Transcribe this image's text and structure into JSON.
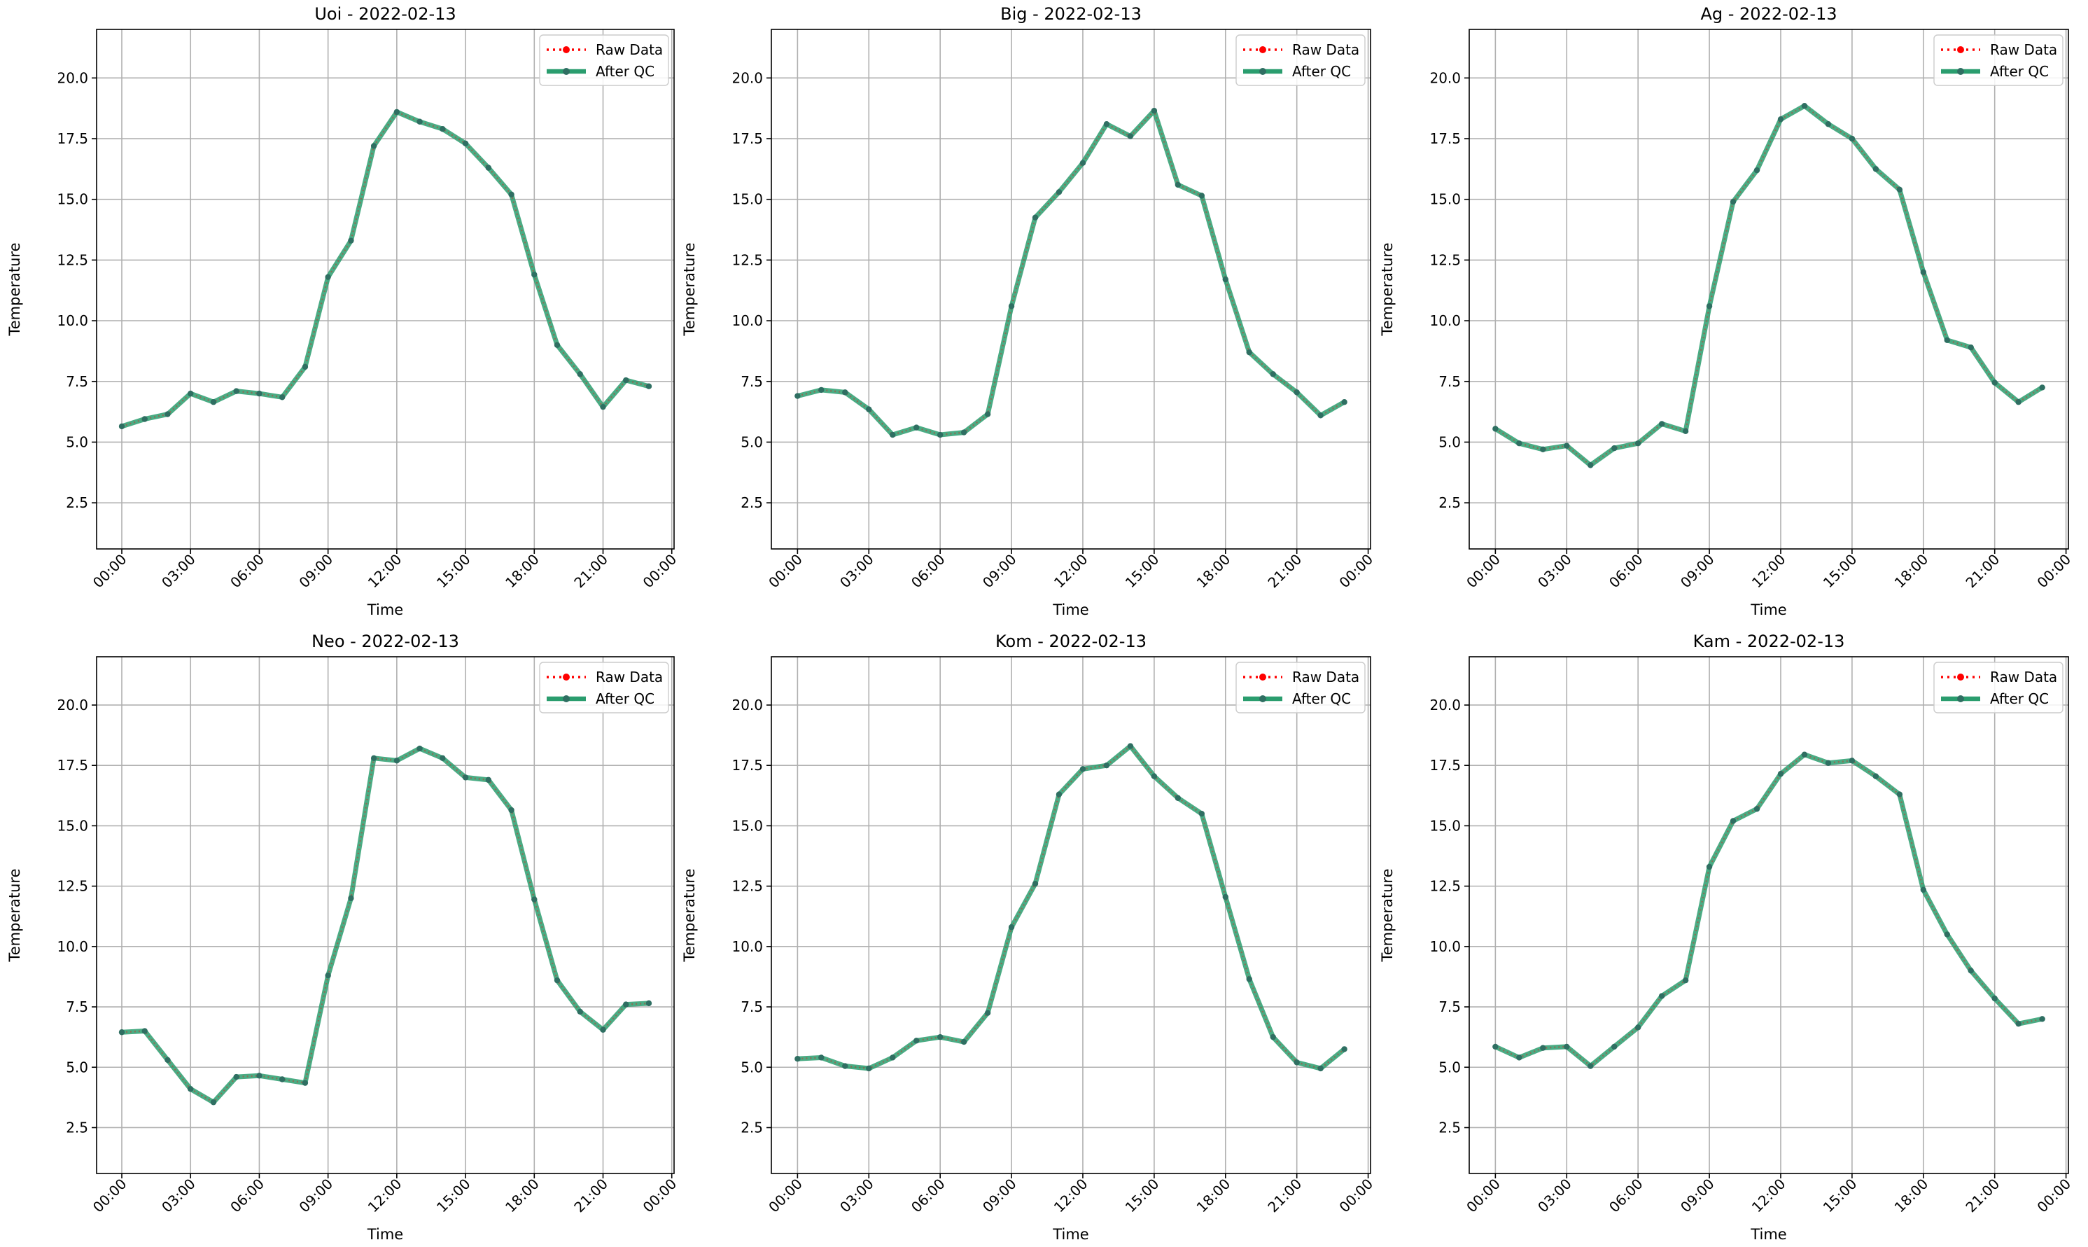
{
  "figure": {
    "legend_entries": [
      "Raw Data",
      "After QC"
    ],
    "colors": {
      "raw": "#ff0000",
      "qc": "#2a9d6e",
      "qc_marker": "#2f6f62",
      "grid": "#b0b0b0",
      "axes": "#000000"
    }
  },
  "chart_data": [
    {
      "type": "line",
      "title": "Uoi - 2022-02-13",
      "xlabel": "Time",
      "ylabel": "Temperature",
      "xlim": [
        -1.1,
        24.1
      ],
      "ylim": [
        0.6,
        22.0
      ],
      "yticks": [
        2.5,
        5.0,
        7.5,
        10.0,
        12.5,
        15.0,
        17.5,
        20.0
      ],
      "ytick_labels": [
        "2.5",
        "5.0",
        "7.5",
        "10.0",
        "12.5",
        "15.0",
        "17.5",
        "20.0"
      ],
      "xticks": [
        0,
        3,
        6,
        9,
        12,
        15,
        18,
        21,
        24
      ],
      "xtick_labels": [
        "00:00",
        "03:00",
        "06:00",
        "09:00",
        "12:00",
        "15:00",
        "18:00",
        "21:00",
        "00:00"
      ],
      "grid": true,
      "legend": "top-right",
      "x": [
        0,
        1,
        2,
        3,
        4,
        5,
        6,
        7,
        8,
        9,
        10,
        11,
        12,
        13,
        14,
        15,
        16,
        17,
        18,
        19,
        20,
        21,
        22,
        23
      ],
      "series": [
        {
          "name": "Raw Data",
          "values": [
            5.65,
            5.95,
            6.15,
            7.0,
            6.65,
            7.1,
            7.0,
            6.85,
            8.1,
            11.8,
            13.3,
            17.2,
            18.6,
            18.2,
            17.9,
            17.3,
            16.3,
            15.2,
            11.9,
            9.0,
            7.8,
            6.45,
            7.55,
            7.3
          ]
        },
        {
          "name": "After QC",
          "values": [
            5.65,
            5.95,
            6.15,
            7.0,
            6.65,
            7.1,
            7.0,
            6.85,
            8.1,
            11.8,
            13.3,
            17.2,
            18.6,
            18.2,
            17.9,
            17.3,
            16.3,
            15.2,
            11.9,
            9.0,
            7.8,
            6.45,
            7.55,
            7.3
          ]
        }
      ]
    },
    {
      "type": "line",
      "title": "Big - 2022-02-13",
      "xlabel": "Time",
      "ylabel": "Temperature",
      "xlim": [
        -1.1,
        24.1
      ],
      "ylim": [
        0.6,
        22.0
      ],
      "yticks": [
        2.5,
        5.0,
        7.5,
        10.0,
        12.5,
        15.0,
        17.5,
        20.0
      ],
      "ytick_labels": [
        "2.5",
        "5.0",
        "7.5",
        "10.0",
        "12.5",
        "15.0",
        "17.5",
        "20.0"
      ],
      "xticks": [
        0,
        3,
        6,
        9,
        12,
        15,
        18,
        21,
        24
      ],
      "xtick_labels": [
        "00:00",
        "03:00",
        "06:00",
        "09:00",
        "12:00",
        "15:00",
        "18:00",
        "21:00",
        "00:00"
      ],
      "grid": true,
      "legend": "top-right",
      "x": [
        0,
        1,
        2,
        3,
        4,
        5,
        6,
        7,
        8,
        9,
        10,
        11,
        12,
        13,
        14,
        15,
        16,
        17,
        18,
        19,
        20,
        21,
        22,
        23
      ],
      "series": [
        {
          "name": "Raw Data",
          "values": [
            6.9,
            7.15,
            7.05,
            6.35,
            5.3,
            5.6,
            5.3,
            5.4,
            6.15,
            10.6,
            14.25,
            15.3,
            16.5,
            18.1,
            17.6,
            18.65,
            15.6,
            15.15,
            11.7,
            8.7,
            7.8,
            7.05,
            6.1,
            6.65
          ]
        },
        {
          "name": "After QC",
          "values": [
            6.9,
            7.15,
            7.05,
            6.35,
            5.3,
            5.6,
            5.3,
            5.4,
            6.15,
            10.6,
            14.25,
            15.3,
            16.5,
            18.1,
            17.6,
            18.65,
            15.6,
            15.15,
            11.7,
            8.7,
            7.8,
            7.05,
            6.1,
            6.65
          ]
        }
      ]
    },
    {
      "type": "line",
      "title": "Ag - 2022-02-13",
      "xlabel": "Time",
      "ylabel": "Temperature",
      "xlim": [
        -1.1,
        24.1
      ],
      "ylim": [
        0.6,
        22.0
      ],
      "yticks": [
        2.5,
        5.0,
        7.5,
        10.0,
        12.5,
        15.0,
        17.5,
        20.0
      ],
      "ytick_labels": [
        "2.5",
        "5.0",
        "7.5",
        "10.0",
        "12.5",
        "15.0",
        "17.5",
        "20.0"
      ],
      "xticks": [
        0,
        3,
        6,
        9,
        12,
        15,
        18,
        21,
        24
      ],
      "xtick_labels": [
        "00:00",
        "03:00",
        "06:00",
        "09:00",
        "12:00",
        "15:00",
        "18:00",
        "21:00",
        "00:00"
      ],
      "grid": true,
      "legend": "top-right",
      "x": [
        0,
        1,
        2,
        3,
        4,
        5,
        6,
        7,
        8,
        9,
        10,
        11,
        12,
        13,
        14,
        15,
        16,
        17,
        18,
        19,
        20,
        21,
        22,
        23
      ],
      "series": [
        {
          "name": "Raw Data",
          "values": [
            5.55,
            4.95,
            4.7,
            4.85,
            4.05,
            4.75,
            4.95,
            5.75,
            5.45,
            10.6,
            14.9,
            16.2,
            18.3,
            18.85,
            18.1,
            17.5,
            16.25,
            15.4,
            12.0,
            9.2,
            8.9,
            7.45,
            6.65,
            7.25
          ]
        },
        {
          "name": "After QC",
          "values": [
            5.55,
            4.95,
            4.7,
            4.85,
            4.05,
            4.75,
            4.95,
            5.75,
            5.45,
            10.6,
            14.9,
            16.2,
            18.3,
            18.85,
            18.1,
            17.5,
            16.25,
            15.4,
            12.0,
            9.2,
            8.9,
            7.45,
            6.65,
            7.25
          ]
        }
      ]
    },
    {
      "type": "line",
      "title": "Neo - 2022-02-13",
      "xlabel": "Time",
      "ylabel": "Temperature",
      "xlim": [
        -1.1,
        24.1
      ],
      "ylim": [
        0.6,
        22.0
      ],
      "yticks": [
        2.5,
        5.0,
        7.5,
        10.0,
        12.5,
        15.0,
        17.5,
        20.0
      ],
      "ytick_labels": [
        "2.5",
        "5.0",
        "7.5",
        "10.0",
        "12.5",
        "15.0",
        "17.5",
        "20.0"
      ],
      "xticks": [
        0,
        3,
        6,
        9,
        12,
        15,
        18,
        21,
        24
      ],
      "xtick_labels": [
        "00:00",
        "03:00",
        "06:00",
        "09:00",
        "12:00",
        "15:00",
        "18:00",
        "21:00",
        "00:00"
      ],
      "grid": true,
      "legend": "top-right",
      "x": [
        0,
        1,
        2,
        3,
        4,
        5,
        6,
        7,
        8,
        9,
        10,
        11,
        12,
        13,
        14,
        15,
        16,
        17,
        18,
        19,
        20,
        21,
        22,
        23
      ],
      "series": [
        {
          "name": "Raw Data",
          "values": [
            6.45,
            6.5,
            5.3,
            4.1,
            3.55,
            4.6,
            4.65,
            4.5,
            4.35,
            8.8,
            12.0,
            17.8,
            17.7,
            18.2,
            17.8,
            17.0,
            16.9,
            15.65,
            11.95,
            8.6,
            7.3,
            6.55,
            7.6,
            7.65
          ]
        },
        {
          "name": "After QC",
          "values": [
            6.45,
            6.5,
            5.3,
            4.1,
            3.55,
            4.6,
            4.65,
            4.5,
            4.35,
            8.8,
            12.0,
            17.8,
            17.7,
            18.2,
            17.8,
            17.0,
            16.9,
            15.65,
            11.95,
            8.6,
            7.3,
            6.55,
            7.6,
            7.65
          ]
        }
      ]
    },
    {
      "type": "line",
      "title": "Kom - 2022-02-13",
      "xlabel": "Time",
      "ylabel": "Temperature",
      "xlim": [
        -1.1,
        24.1
      ],
      "ylim": [
        0.6,
        22.0
      ],
      "yticks": [
        2.5,
        5.0,
        7.5,
        10.0,
        12.5,
        15.0,
        17.5,
        20.0
      ],
      "ytick_labels": [
        "2.5",
        "5.0",
        "7.5",
        "10.0",
        "12.5",
        "15.0",
        "17.5",
        "20.0"
      ],
      "xticks": [
        0,
        3,
        6,
        9,
        12,
        15,
        18,
        21,
        24
      ],
      "xtick_labels": [
        "00:00",
        "03:00",
        "06:00",
        "09:00",
        "12:00",
        "15:00",
        "18:00",
        "21:00",
        "00:00"
      ],
      "grid": true,
      "legend": "top-right",
      "x": [
        0,
        1,
        2,
        3,
        4,
        5,
        6,
        7,
        8,
        9,
        10,
        11,
        12,
        13,
        14,
        15,
        16,
        17,
        18,
        19,
        20,
        21,
        22,
        23
      ],
      "series": [
        {
          "name": "Raw Data",
          "values": [
            5.35,
            5.4,
            5.05,
            4.95,
            5.4,
            6.1,
            6.25,
            6.05,
            7.25,
            10.8,
            12.6,
            16.3,
            17.35,
            17.5,
            18.3,
            17.05,
            16.15,
            15.5,
            12.05,
            8.65,
            6.25,
            5.2,
            4.95,
            5.75
          ]
        },
        {
          "name": "After QC",
          "values": [
            5.35,
            5.4,
            5.05,
            4.95,
            5.4,
            6.1,
            6.25,
            6.05,
            7.25,
            10.8,
            12.6,
            16.3,
            17.35,
            17.5,
            18.3,
            17.05,
            16.15,
            15.5,
            12.05,
            8.65,
            6.25,
            5.2,
            4.95,
            5.75
          ]
        }
      ]
    },
    {
      "type": "line",
      "title": "Kam - 2022-02-13",
      "xlabel": "Time",
      "ylabel": "Temperature",
      "xlim": [
        -1.1,
        24.1
      ],
      "ylim": [
        0.6,
        22.0
      ],
      "yticks": [
        2.5,
        5.0,
        7.5,
        10.0,
        12.5,
        15.0,
        17.5,
        20.0
      ],
      "ytick_labels": [
        "2.5",
        "5.0",
        "7.5",
        "10.0",
        "12.5",
        "15.0",
        "17.5",
        "20.0"
      ],
      "xticks": [
        0,
        3,
        6,
        9,
        12,
        15,
        18,
        21,
        24
      ],
      "xtick_labels": [
        "00:00",
        "03:00",
        "06:00",
        "09:00",
        "12:00",
        "15:00",
        "18:00",
        "21:00",
        "00:00"
      ],
      "grid": true,
      "legend": "top-right",
      "x": [
        0,
        1,
        2,
        3,
        4,
        5,
        6,
        7,
        8,
        9,
        10,
        11,
        12,
        13,
        14,
        15,
        16,
        17,
        18,
        19,
        20,
        21,
        22,
        23
      ],
      "series": [
        {
          "name": "Raw Data",
          "values": [
            5.85,
            5.4,
            5.8,
            5.85,
            5.05,
            5.85,
            6.65,
            7.95,
            8.6,
            13.3,
            15.2,
            15.7,
            17.15,
            17.95,
            17.6,
            17.7,
            17.05,
            16.3,
            12.35,
            10.5,
            9.0,
            7.85,
            6.8,
            7.0
          ]
        },
        {
          "name": "After QC",
          "values": [
            5.85,
            5.4,
            5.8,
            5.85,
            5.05,
            5.85,
            6.65,
            7.95,
            8.6,
            13.3,
            15.2,
            15.7,
            17.15,
            17.95,
            17.6,
            17.7,
            17.05,
            16.3,
            12.35,
            10.5,
            9.0,
            7.85,
            6.8,
            7.0
          ]
        }
      ]
    }
  ]
}
